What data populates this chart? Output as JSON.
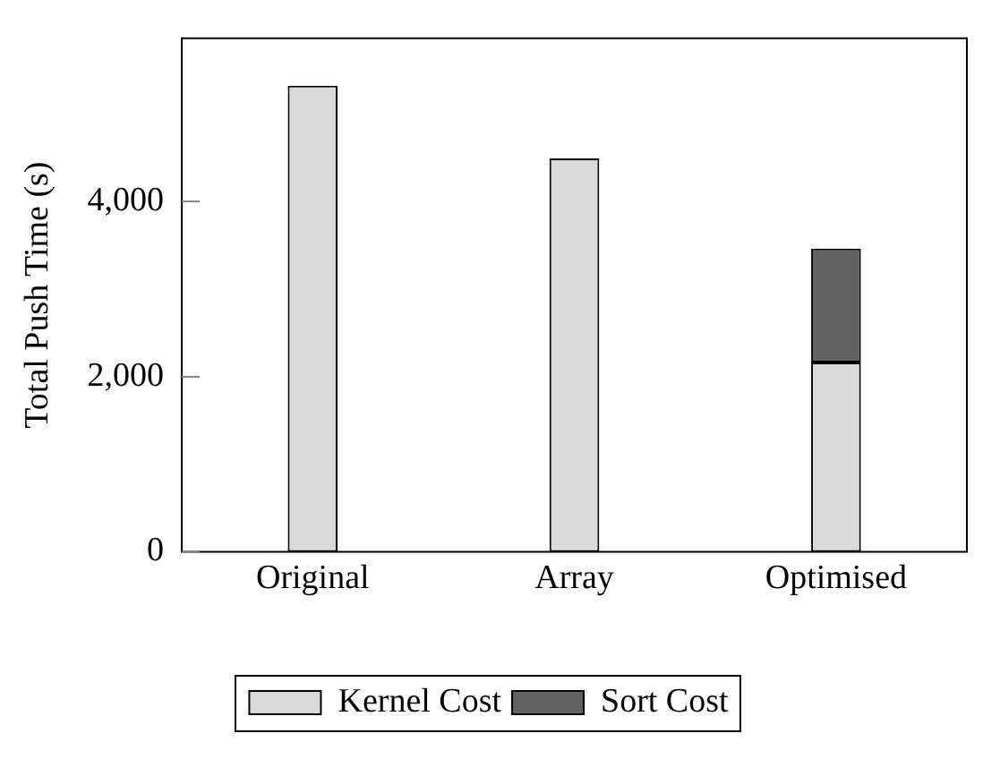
{
  "chart_data": {
    "type": "bar",
    "ylabel": "Total Push Time (s)",
    "categories": [
      "Original",
      "Array",
      "Optimised"
    ],
    "stacked": true,
    "series": [
      {
        "name": "Kernel Cost",
        "color": "#d9d9d9",
        "values": [
          5320,
          4490,
          2160
        ]
      },
      {
        "name": "Sort Cost",
        "color": "#626262",
        "values": [
          null,
          null,
          1300
        ]
      }
    ],
    "ylim": [
      0,
      5860
    ],
    "yticks": [
      0,
      {
        "value": 2000,
        "label": "2,000"
      },
      {
        "value": 4000,
        "label": "4,000"
      }
    ],
    "grid": false,
    "legend": "bottom"
  }
}
